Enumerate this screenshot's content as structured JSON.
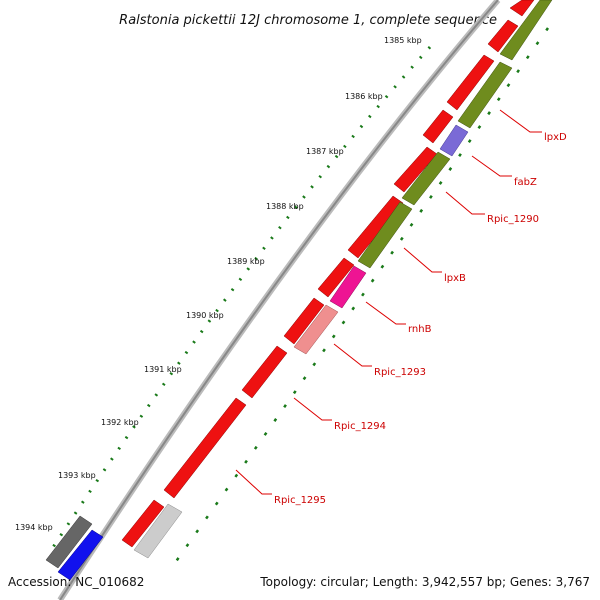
{
  "map": {
    "title": "Ralstonia pickettii 12J chromosome 1, complete sequence",
    "accession": "Accession: NC_010682",
    "summary": "Topology: circular; Length: 3,942,557 bp; Genes: 3,767"
  },
  "scale_ticks": [
    "1385 kbp",
    "1386 kbp",
    "1387 kbp",
    "1388 kbp",
    "1389 kbp",
    "1390 kbp",
    "1391 kbp",
    "1392 kbp",
    "1393 kbp",
    "1394 kbp"
  ],
  "gene_labels": [
    "lpxD",
    "fabZ",
    "Rpic_1290",
    "lpxB",
    "rnhB",
    "Rpic_1293",
    "Rpic_1294",
    "Rpic_1295"
  ],
  "colors": {
    "forward_cds": "#ee1111",
    "reverse_cds": "#6f8c1e",
    "fabZ": "#7a6ad6",
    "rnhB": "#ee1493",
    "Rpic_1293": "#ef8f8f",
    "blue_feature": "#1111ee",
    "grey_feature": "#666666",
    "light_grey_feature": "#cccccc",
    "backbone": "#999999",
    "tick": "#1a7a1a",
    "label_line": "#dd0000"
  },
  "icons": [
    "forward-arrow-icon",
    "reverse-arrow-icon"
  ]
}
